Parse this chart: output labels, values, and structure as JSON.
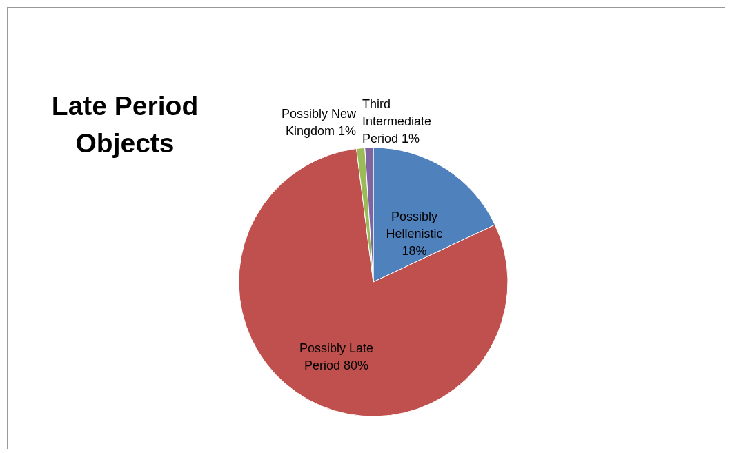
{
  "chart_data": {
    "type": "pie",
    "title": "Late Period Objects",
    "categories": [
      "Possibly Hellenistic",
      "Possibly Late Period",
      "Possibly New Kingdom",
      "Third Intermediate Period"
    ],
    "values": [
      18,
      80,
      1,
      1
    ],
    "value_labels": [
      "18%",
      "80%",
      "1%",
      "1%"
    ],
    "colors": [
      "#4f81bd",
      "#c0504d",
      "#9bbb59",
      "#8064a2"
    ],
    "legend": false
  }
}
